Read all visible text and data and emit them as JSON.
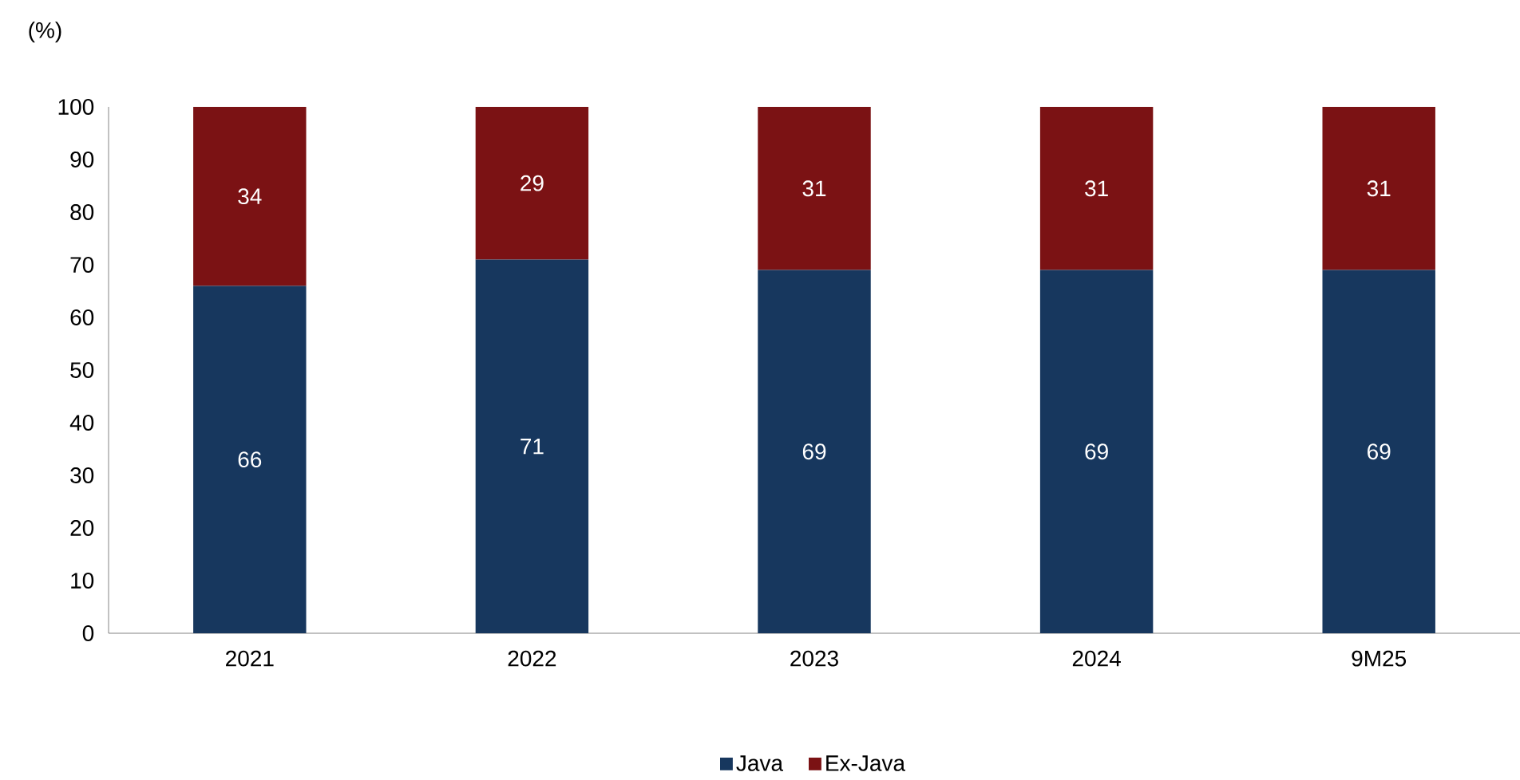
{
  "chart_data": {
    "type": "bar",
    "stacked": true,
    "ylabel": "(%)",
    "categories": [
      "2021",
      "2022",
      "2023",
      "2024",
      "9M25"
    ],
    "series": [
      {
        "name": "Java",
        "color": "#17375e",
        "values": [
          66,
          71,
          69,
          69,
          69
        ]
      },
      {
        "name": "Ex-Java",
        "color": "#7b1214",
        "values": [
          34,
          29,
          31,
          31,
          31
        ]
      }
    ],
    "ylim": [
      0,
      100
    ],
    "yticks": [
      0,
      10,
      20,
      30,
      40,
      50,
      60,
      70,
      80,
      90,
      100
    ],
    "data_labels": true,
    "legend": "bottom"
  }
}
